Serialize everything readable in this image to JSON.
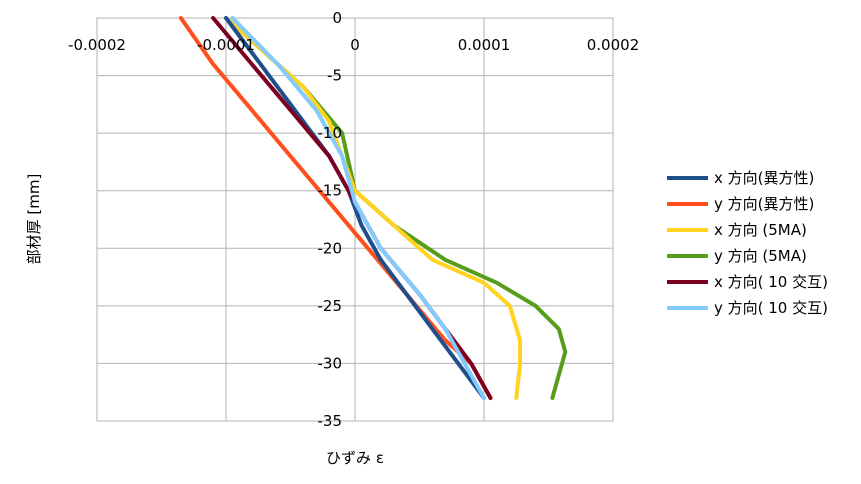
{
  "chart_data": {
    "type": "line",
    "title": "",
    "xlabel": "ひずみ ε",
    "ylabel": "部材厚 [mm]",
    "xlim": [
      -0.0002,
      0.0002
    ],
    "ylim": [
      0,
      -35
    ],
    "x_ticks": [
      -0.0002,
      -0.0001,
      0,
      0.0001,
      0.0002
    ],
    "x_tick_labels": [
      "-0.0002",
      "-0.0001",
      "0",
      "0.0001",
      "0.0002"
    ],
    "y_ticks": [
      0,
      -5,
      -10,
      -15,
      -20,
      -25,
      -30,
      -35
    ],
    "y_tick_labels": [
      "0",
      "-5",
      "-10",
      "-15",
      "-20",
      "-25",
      "-30",
      "-35"
    ],
    "grid": true,
    "legend_position": "right",
    "series": [
      {
        "name": "x 方向(異方性)",
        "color": "#1f4e8c",
        "points": [
          {
            "x": -0.0001,
            "y": 0
          },
          {
            "x": -8e-05,
            "y": -3
          },
          {
            "x": -6e-05,
            "y": -6
          },
          {
            "x": -4e-05,
            "y": -9
          },
          {
            "x": -2e-05,
            "y": -12
          },
          {
            "x": -5e-06,
            "y": -15
          },
          {
            "x": 5e-06,
            "y": -18
          },
          {
            "x": 2e-05,
            "y": -21
          },
          {
            "x": 4e-05,
            "y": -24
          },
          {
            "x": 6e-05,
            "y": -27
          },
          {
            "x": 8e-05,
            "y": -30
          },
          {
            "x": 0.0001,
            "y": -33
          }
        ]
      },
      {
        "name": "y 方向(異方性)",
        "color": "#ff4f1f",
        "points": [
          {
            "x": -0.000135,
            "y": 0
          },
          {
            "x": -0.00011,
            "y": -4
          },
          {
            "x": -8e-05,
            "y": -8
          },
          {
            "x": -5e-05,
            "y": -12
          },
          {
            "x": -2e-05,
            "y": -16
          },
          {
            "x": 1e-05,
            "y": -20
          },
          {
            "x": 4e-05,
            "y": -24
          },
          {
            "x": 7e-05,
            "y": -28
          },
          {
            "x": 9e-05,
            "y": -30
          },
          {
            "x": 0.000105,
            "y": -33
          }
        ]
      },
      {
        "name": "x 方向 (5MA)",
        "color": "#ffd320",
        "points": [
          {
            "x": -0.0001,
            "y": 0
          },
          {
            "x": -7e-05,
            "y": -3
          },
          {
            "x": -4e-05,
            "y": -6
          },
          {
            "x": -2e-05,
            "y": -9
          },
          {
            "x": -1e-05,
            "y": -12
          },
          {
            "x": 0,
            "y": -15
          },
          {
            "x": 3e-05,
            "y": -18
          },
          {
            "x": 6e-05,
            "y": -21
          },
          {
            "x": 0.0001,
            "y": -23
          },
          {
            "x": 0.00012,
            "y": -25
          },
          {
            "x": 0.000128,
            "y": -28
          },
          {
            "x": 0.000128,
            "y": -30
          },
          {
            "x": 0.000125,
            "y": -33
          }
        ]
      },
      {
        "name": "y 方向 (5MA)",
        "color": "#579d1c",
        "points": [
          {
            "x": -0.0001,
            "y": 0
          },
          {
            "x": -7e-05,
            "y": -3
          },
          {
            "x": -4e-05,
            "y": -6
          },
          {
            "x": -1e-05,
            "y": -10
          },
          {
            "x": 0,
            "y": -15
          },
          {
            "x": 3e-05,
            "y": -18
          },
          {
            "x": 7e-05,
            "y": -21
          },
          {
            "x": 0.00011,
            "y": -23
          },
          {
            "x": 0.00014,
            "y": -25
          },
          {
            "x": 0.000158,
            "y": -27
          },
          {
            "x": 0.000163,
            "y": -29
          },
          {
            "x": 0.000158,
            "y": -31
          },
          {
            "x": 0.000153,
            "y": -33
          }
        ]
      },
      {
        "name": "x 方向( 10 交互)",
        "color": "#7e0021",
        "points": [
          {
            "x": -0.00011,
            "y": 0
          },
          {
            "x": -8e-05,
            "y": -4
          },
          {
            "x": -5e-05,
            "y": -8
          },
          {
            "x": -2e-05,
            "y": -12
          },
          {
            "x": 0,
            "y": -16
          },
          {
            "x": 2e-05,
            "y": -20
          },
          {
            "x": 5e-05,
            "y": -24
          },
          {
            "x": 7e-05,
            "y": -27
          },
          {
            "x": 9e-05,
            "y": -30
          },
          {
            "x": 0.000105,
            "y": -33
          }
        ]
      },
      {
        "name": "y 方向( 10 交互)",
        "color": "#83caff",
        "points": [
          {
            "x": -9.5e-05,
            "y": 0
          },
          {
            "x": -6e-05,
            "y": -4
          },
          {
            "x": -3e-05,
            "y": -8
          },
          {
            "x": -1e-05,
            "y": -12
          },
          {
            "x": 0,
            "y": -16
          },
          {
            "x": 2e-05,
            "y": -20
          },
          {
            "x": 5e-05,
            "y": -24
          },
          {
            "x": 7e-05,
            "y": -27
          },
          {
            "x": 8.5e-05,
            "y": -30
          },
          {
            "x": 0.0001,
            "y": -33
          }
        ]
      }
    ]
  }
}
